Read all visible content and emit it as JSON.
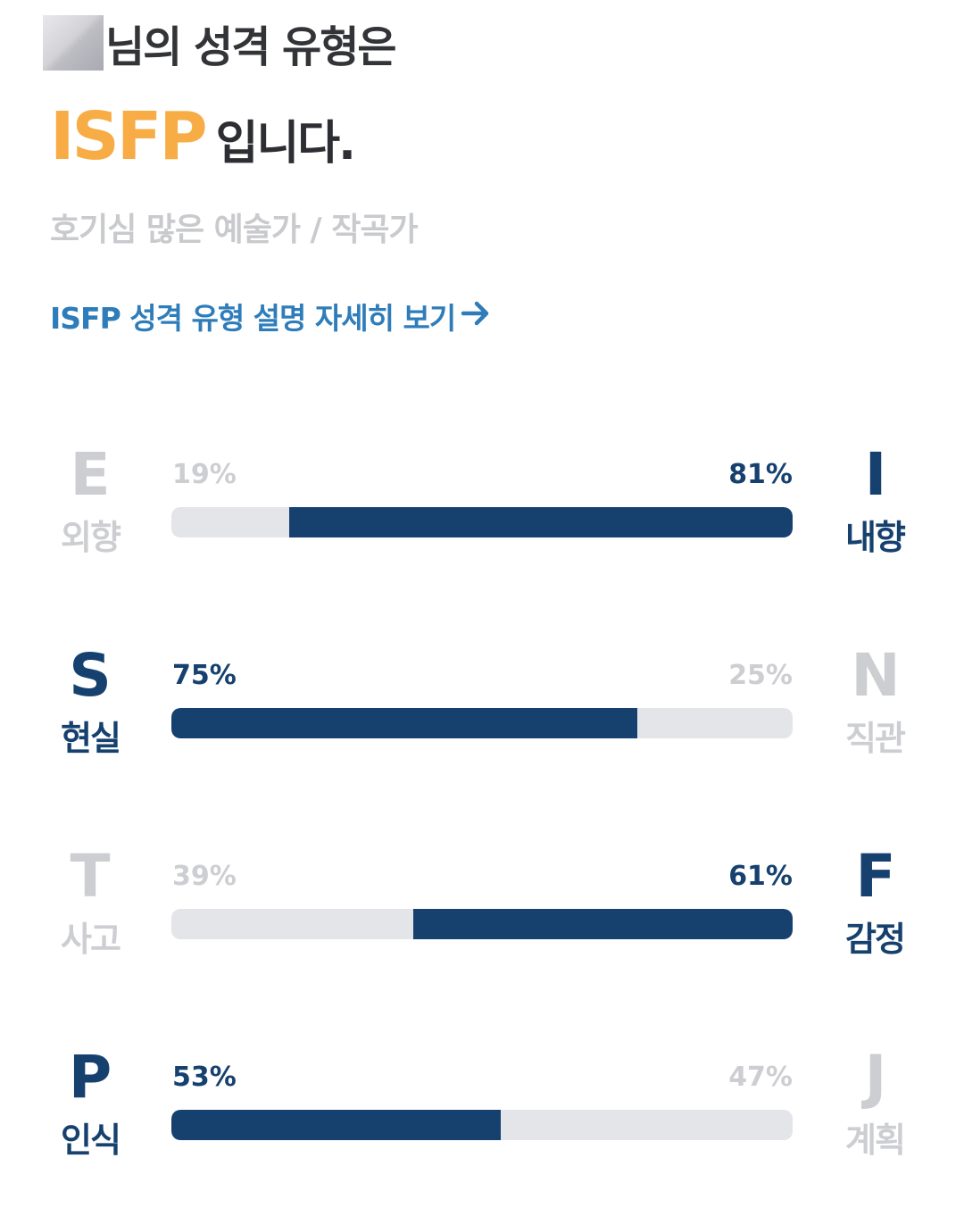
{
  "header": {
    "title_suffix": "님의 성격 유형은",
    "type_code": "ISFP",
    "type_suffix": "입니다.",
    "subtitle": "호기심 많은 예술가 / 작곡가",
    "detail_link": "ISFP 성격 유형 설명 자세히 보기",
    "link_icon": "arrow-right-icon"
  },
  "colors": {
    "accent_orange": "#f7ac45",
    "bar_navy": "#16416f",
    "bar_track": "#e4e5e8",
    "inactive_gray": "#cdced2",
    "link_blue": "#2e7dba"
  },
  "traits": [
    {
      "left_letter": "E",
      "left_word": "외향",
      "left_pct": "19%",
      "right_letter": "I",
      "right_word": "내향",
      "right_pct": "81%",
      "dominant": "right",
      "dominant_fraction": 0.81
    },
    {
      "left_letter": "S",
      "left_word": "현실",
      "left_pct": "75%",
      "right_letter": "N",
      "right_word": "직관",
      "right_pct": "25%",
      "dominant": "left",
      "dominant_fraction": 0.75
    },
    {
      "left_letter": "T",
      "left_word": "사고",
      "left_pct": "39%",
      "right_letter": "F",
      "right_word": "감정",
      "right_pct": "61%",
      "dominant": "right",
      "dominant_fraction": 0.61
    },
    {
      "left_letter": "P",
      "left_word": "인식",
      "left_pct": "53%",
      "right_letter": "J",
      "right_word": "계획",
      "right_pct": "47%",
      "dominant": "left",
      "dominant_fraction": 0.53
    }
  ]
}
